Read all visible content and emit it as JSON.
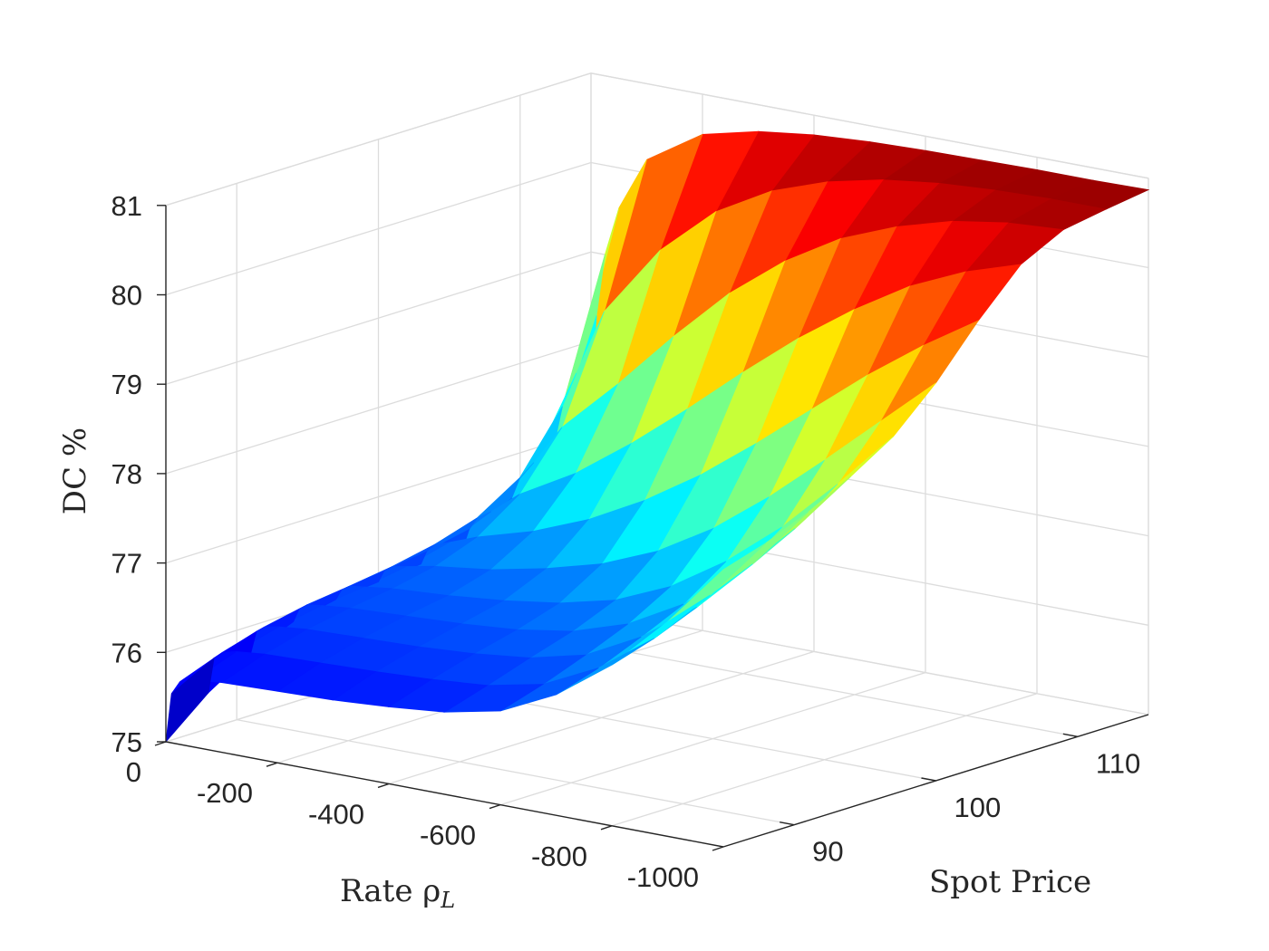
{
  "chart_data": {
    "type": "surface",
    "xlabel": "Rate ρ",
    "xlabel_subscript": "L",
    "ylabel": "Spot Price",
    "zlabel": "DC %",
    "x_ticks": [
      "0",
      "-200",
      "-400",
      "-600",
      "-800",
      "-1000"
    ],
    "y_ticks": [
      "90",
      "100",
      "110"
    ],
    "z_ticks": [
      "75",
      "76",
      "77",
      "78",
      "79",
      "80",
      "81"
    ],
    "xlim": [
      0,
      -1000
    ],
    "ylim": [
      85,
      115
    ],
    "zlim": [
      75,
      81
    ],
    "colormap": "jet",
    "grid": true,
    "rate_samples": [
      0,
      -10,
      -25,
      -50,
      -100,
      -200,
      -300,
      -400,
      -500,
      -600,
      -700,
      -800,
      -900,
      -1000
    ],
    "spot_samples": [
      85,
      88,
      91,
      94,
      97,
      100,
      103,
      106,
      109,
      112,
      115
    ],
    "dc_values": [
      [
        75.0,
        75.55,
        75.7,
        75.75,
        75.78,
        75.8,
        75.82,
        75.86,
        75.92,
        76.05,
        76.35,
        76.8,
        77.4,
        78.1
      ],
      [
        75.4,
        75.8,
        75.88,
        75.92,
        75.95,
        75.97,
        75.99,
        76.02,
        76.07,
        76.2,
        76.5,
        76.95,
        77.55,
        78.25
      ],
      [
        75.7,
        75.95,
        76.02,
        76.05,
        76.08,
        76.1,
        76.12,
        76.16,
        76.23,
        76.38,
        76.7,
        77.15,
        77.75,
        78.45
      ],
      [
        75.9,
        76.05,
        76.12,
        76.14,
        76.17,
        76.2,
        76.23,
        76.28,
        76.38,
        76.58,
        76.92,
        77.4,
        78.0,
        78.7
      ],
      [
        76.0,
        76.12,
        76.18,
        76.2,
        76.24,
        76.28,
        76.34,
        76.43,
        76.58,
        76.85,
        77.25,
        77.75,
        78.35,
        79.0
      ],
      [
        76.05,
        76.18,
        76.25,
        76.28,
        76.34,
        76.42,
        76.55,
        76.72,
        76.98,
        77.35,
        77.82,
        78.35,
        78.9,
        79.45
      ],
      [
        76.1,
        76.25,
        76.35,
        76.4,
        76.52,
        76.7,
        76.95,
        77.28,
        77.68,
        78.15,
        78.65,
        79.15,
        79.6,
        80.0
      ],
      [
        76.15,
        76.35,
        76.5,
        76.6,
        76.85,
        77.2,
        77.65,
        78.15,
        78.68,
        79.18,
        79.62,
        80.0,
        80.28,
        80.48
      ],
      [
        76.25,
        76.55,
        76.8,
        77.0,
        77.45,
        78.05,
        78.7,
        79.3,
        79.78,
        80.15,
        80.4,
        80.58,
        80.68,
        80.72
      ],
      [
        76.5,
        77.0,
        77.45,
        77.85,
        78.6,
        79.4,
        79.95,
        80.3,
        80.52,
        80.66,
        80.74,
        80.78,
        80.8,
        80.8
      ],
      [
        77.4,
        78.3,
        79.0,
        79.55,
        80.15,
        80.55,
        80.7,
        80.78,
        80.82,
        80.84,
        80.85,
        80.86,
        80.86,
        80.87
      ]
    ]
  }
}
